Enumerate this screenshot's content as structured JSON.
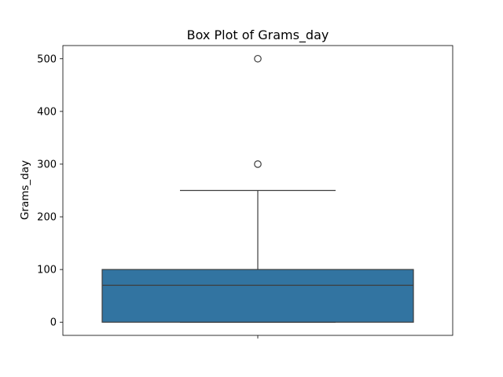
{
  "chart_data": {
    "type": "box",
    "title": "Box Plot of Grams_day",
    "xlabel": "",
    "ylabel": "Grams_day",
    "ylim": [
      -25,
      525
    ],
    "yticks": [
      0,
      100,
      200,
      300,
      400,
      500
    ],
    "box": {
      "whisker_low": 0,
      "q1": 0,
      "median": 70,
      "q3": 100,
      "whisker_high": 250,
      "outliers": [
        300,
        500
      ]
    },
    "colors": {
      "box_fill": "#3274a1",
      "line": "#3d3d3d",
      "frame": "#000000"
    },
    "grid": false,
    "legend": "none"
  }
}
